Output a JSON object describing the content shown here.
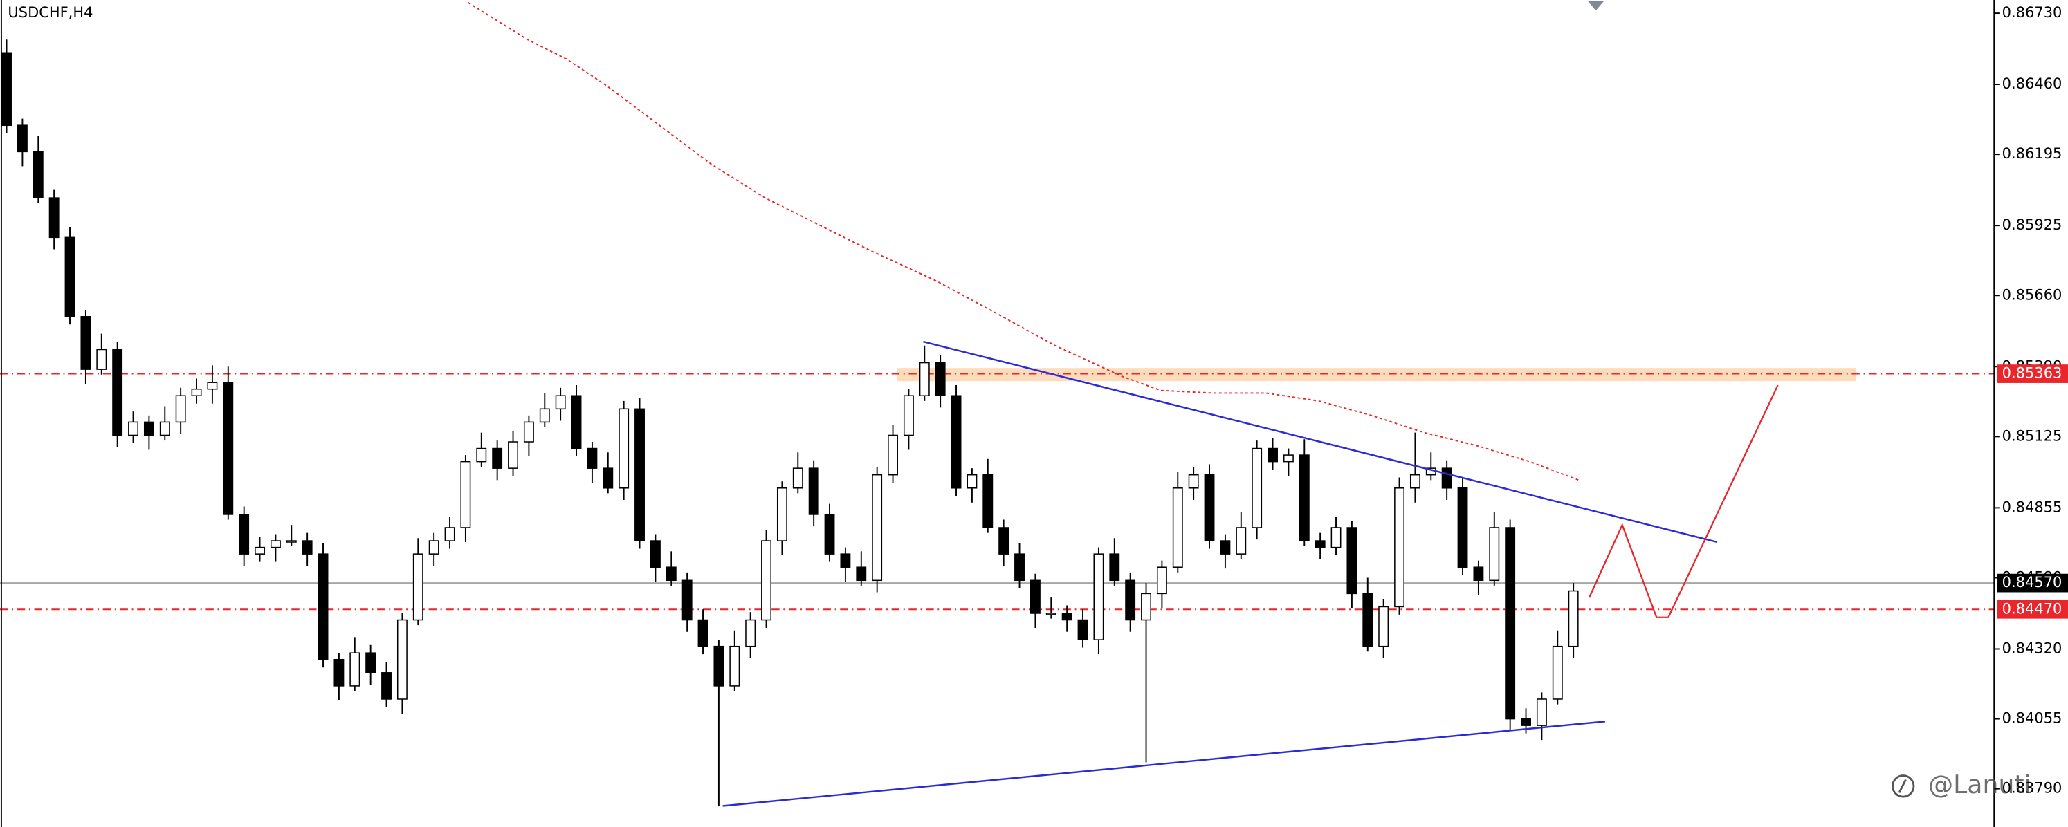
{
  "chart_data": {
    "type": "candlestick",
    "title": "USDCHF,H4",
    "watermark": "@Lanuti",
    "up_color": "#ffffff",
    "down_color": "#000000",
    "outline_color": "#000000",
    "ylim": [
      0.83645,
      0.8678
    ],
    "yticks": [
      {
        "value": 0.8673,
        "label": "0.86730"
      },
      {
        "value": 0.8646,
        "label": "0.86460"
      },
      {
        "value": 0.86195,
        "label": "0.86195"
      },
      {
        "value": 0.85925,
        "label": "0.85925"
      },
      {
        "value": 0.8566,
        "label": "0.85660"
      },
      {
        "value": 0.8539,
        "label": "0.85390"
      },
      {
        "value": 0.85125,
        "label": "0.85125"
      },
      {
        "value": 0.84855,
        "label": "0.84855"
      },
      {
        "value": 0.8459,
        "label": "0.84590"
      },
      {
        "value": 0.8432,
        "label": "0.84320"
      },
      {
        "value": 0.84055,
        "label": "0.84055"
      },
      {
        "value": 0.8379,
        "label": "0.83790"
      }
    ],
    "grid": false,
    "levels": [
      {
        "value": 0.85363,
        "label": "0.85363",
        "color": "#e8262b",
        "style": "dashdot",
        "label_color": "#e8262b"
      },
      {
        "value": 0.8457,
        "label": "0.84570",
        "color": "#a6a6a6",
        "style": "solid",
        "label_color": "#000000"
      },
      {
        "value": 0.8447,
        "label": "0.84470",
        "color": "#e8262b",
        "style": "dashdot",
        "label_color": "#e8262b"
      }
    ],
    "open": [
      0.8658,
      0.86305,
      0.86205,
      0.8603,
      0.8588,
      0.8558,
      0.8538,
      0.85455,
      0.8513,
      0.8518,
      0.8513,
      0.8518,
      0.8528,
      0.85305,
      0.8533,
      0.8483,
      0.8468,
      0.84705,
      0.8473,
      0.8473,
      0.8468,
      0.8428,
      0.8418,
      0.84305,
      0.8423,
      0.8413,
      0.8443,
      0.8468,
      0.8473,
      0.8478,
      0.8503,
      0.8508,
      0.85005,
      0.85105,
      0.8518,
      0.8523,
      0.8528,
      0.8508,
      0.85005,
      0.8493,
      0.8523,
      0.8473,
      0.8463,
      0.8458,
      0.8443,
      0.8433,
      0.8418,
      0.8433,
      0.8443,
      0.8473,
      0.8493,
      0.85005,
      0.8483,
      0.8468,
      0.8463,
      0.8458,
      0.8498,
      0.8513,
      0.8528,
      0.85405,
      0.8528,
      0.8493,
      0.8498,
      0.8478,
      0.8468,
      0.8458,
      0.84455,
      0.84455,
      0.8443,
      0.84355,
      0.8468,
      0.8458,
      0.8443,
      0.8453,
      0.8463,
      0.8493,
      0.8498,
      0.8473,
      0.8468,
      0.8478,
      0.8508,
      0.8503,
      0.85055,
      0.8473,
      0.84705,
      0.8478,
      0.8453,
      0.8433,
      0.8448,
      0.8493,
      0.8498,
      0.85005,
      0.8493,
      0.8463,
      0.8458,
      0.8478,
      0.84055,
      0.8403,
      0.8413,
      0.8433
    ],
    "high": [
      0.8663,
      0.8633,
      0.86265,
      0.8606,
      0.8592,
      0.85605,
      0.85515,
      0.85485,
      0.8522,
      0.85205,
      0.8524,
      0.8531,
      0.85345,
      0.85395,
      0.8539,
      0.8486,
      0.84745,
      0.84755,
      0.8479,
      0.8476,
      0.8472,
      0.84305,
      0.84365,
      0.84335,
      0.8427,
      0.84455,
      0.8474,
      0.8476,
      0.8482,
      0.85055,
      0.8514,
      0.8511,
      0.85145,
      0.85205,
      0.8529,
      0.8531,
      0.8532,
      0.85105,
      0.85065,
      0.8526,
      0.8527,
      0.84755,
      0.8469,
      0.8461,
      0.8447,
      0.84355,
      0.8439,
      0.8446,
      0.8477,
      0.84955,
      0.85065,
      0.85035,
      0.8487,
      0.84705,
      0.8469,
      0.8501,
      0.8517,
      0.85305,
      0.8547,
      0.85435,
      0.8532,
      0.85005,
      0.8504,
      0.8481,
      0.8472,
      0.84605,
      0.84515,
      0.84485,
      0.8447,
      0.84705,
      0.8474,
      0.8461,
      0.8457,
      0.84655,
      0.8499,
      0.8501,
      0.8502,
      0.84755,
      0.8484,
      0.8511,
      0.8512,
      0.8508,
      0.85115,
      0.8476,
      0.8482,
      0.84805,
      0.8459,
      0.8451,
      0.8497,
      0.8514,
      0.85065,
      0.85035,
      0.8497,
      0.84655,
      0.8484,
      0.8481,
      0.84095,
      0.84155,
      0.8439,
      0.8457
    ],
    "low": [
      0.86275,
      0.8615,
      0.8601,
      0.85835,
      0.8555,
      0.85325,
      0.8536,
      0.85085,
      0.851,
      0.85075,
      0.8511,
      0.85135,
      0.8525,
      0.8525,
      0.8481,
      0.84635,
      0.8465,
      0.8465,
      0.8471,
      0.84635,
      0.8425,
      0.84125,
      0.8416,
      0.84185,
      0.841,
      0.84075,
      0.8441,
      0.84635,
      0.847,
      0.84725,
      0.8501,
      0.8496,
      0.84975,
      0.8505,
      0.8516,
      0.85185,
      0.8505,
      0.8495,
      0.8491,
      0.84885,
      0.847,
      0.84575,
      0.8456,
      0.84385,
      0.843,
      0.83725,
      0.8416,
      0.84285,
      0.844,
      0.84675,
      0.8491,
      0.84785,
      0.8465,
      0.84575,
      0.8456,
      0.84535,
      0.8495,
      0.85075,
      0.8526,
      0.85235,
      0.849,
      0.84875,
      0.8476,
      0.84635,
      0.8455,
      0.844,
      0.84435,
      0.84385,
      0.84325,
      0.843,
      0.8456,
      0.84385,
      0.8389,
      0.84475,
      0.8461,
      0.84885,
      0.847,
      0.84625,
      0.8466,
      0.84735,
      0.85,
      0.84975,
      0.8471,
      0.8466,
      0.84675,
      0.84475,
      0.8431,
      0.84285,
      0.8445,
      0.84875,
      0.8496,
      0.84885,
      0.846,
      0.84525,
      0.8456,
      0.8401,
      0.84,
      0.83975,
      0.8411,
      0.84285
    ],
    "close": [
      0.86305,
      0.86205,
      0.8603,
      0.8588,
      0.8558,
      0.8538,
      0.85455,
      0.8513,
      0.8518,
      0.8513,
      0.8518,
      0.8528,
      0.85305,
      0.8533,
      0.8483,
      0.8468,
      0.84705,
      0.8473,
      0.8473,
      0.8468,
      0.8428,
      0.8418,
      0.84305,
      0.8423,
      0.8413,
      0.8443,
      0.8468,
      0.8473,
      0.8478,
      0.8503,
      0.8508,
      0.85005,
      0.85105,
      0.8518,
      0.8523,
      0.8528,
      0.8508,
      0.85005,
      0.8493,
      0.8523,
      0.8473,
      0.8463,
      0.8458,
      0.8443,
      0.8433,
      0.8418,
      0.8433,
      0.8443,
      0.8473,
      0.8493,
      0.85005,
      0.8483,
      0.8468,
      0.8463,
      0.8458,
      0.8498,
      0.8513,
      0.8528,
      0.85405,
      0.8528,
      0.8493,
      0.8498,
      0.8478,
      0.8468,
      0.8458,
      0.84455,
      0.84455,
      0.8443,
      0.84355,
      0.8468,
      0.8458,
      0.8443,
      0.8453,
      0.8463,
      0.8493,
      0.8498,
      0.8473,
      0.8468,
      0.8478,
      0.8508,
      0.8503,
      0.85055,
      0.8473,
      0.84705,
      0.8478,
      0.8453,
      0.8433,
      0.8448,
      0.8493,
      0.8498,
      0.85005,
      0.8493,
      0.8463,
      0.8458,
      0.8478,
      0.84055,
      0.8403,
      0.8413,
      0.8433,
      0.8454
    ]
  }
}
